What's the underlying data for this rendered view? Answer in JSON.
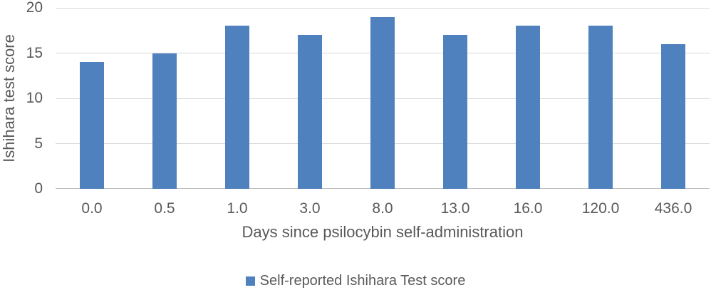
{
  "chart_data": {
    "type": "bar",
    "categories": [
      "0.0",
      "0.5",
      "1.0",
      "3.0",
      "8.0",
      "13.0",
      "16.0",
      "120.0",
      "436.0"
    ],
    "values": [
      14,
      15,
      18,
      17,
      19,
      17,
      18,
      18,
      16
    ],
    "title": "",
    "xlabel": "Days since psilocybin self-administration",
    "ylabel": "Ishihara test score",
    "ylim": [
      0,
      20
    ],
    "yticks": [
      0,
      5,
      10,
      15,
      20
    ],
    "grid": true,
    "legend_position": "bottom-center",
    "legend": [
      {
        "label": "Self-reported Ishihara Test score",
        "color": "#4E81BD"
      }
    ]
  },
  "colors": {
    "bar": "#4E81BD",
    "gridline": "#D9D9D9",
    "axis_line": "#BFBFBF",
    "tick_text": "#595959",
    "title_text": "#595959",
    "background": "#FFFFFF"
  }
}
